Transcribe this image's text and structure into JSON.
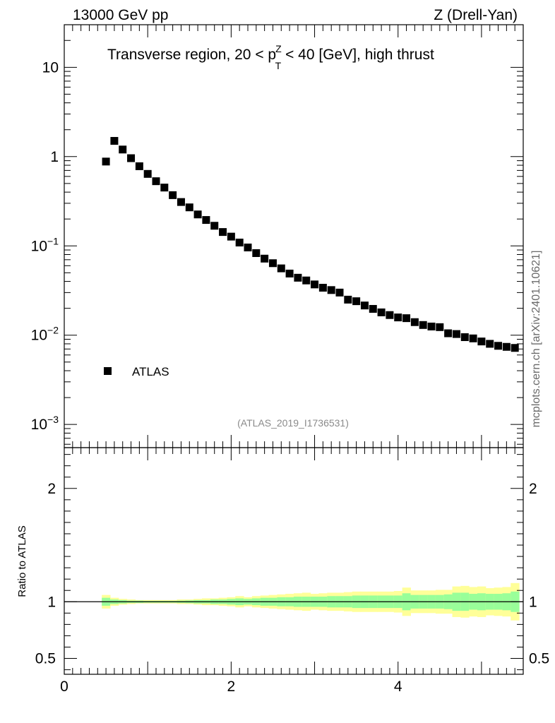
{
  "header": {
    "left": "13000 GeV pp",
    "right": "Z (Drell-Yan)"
  },
  "side_text": "mcplots.cern.ch [arXiv:2401.10621]",
  "reference": "(ATLAS_2019_I1736531)",
  "chart_data": [
    {
      "type": "scatter",
      "panel": "main",
      "title_parts": {
        "prefix": "Transverse region, 20 < p",
        "sup": "Z",
        "sub": "T",
        "suffix": " < 40 [GeV], high thrust"
      },
      "y_scale": "log",
      "ylim": [
        0.00055,
        30
      ],
      "xlim": [
        0,
        5.5
      ],
      "y_ticks": [
        {
          "value": 0.001,
          "base": "10",
          "exp": "−3"
        },
        {
          "value": 0.01,
          "base": "10",
          "exp": "−2"
        },
        {
          "value": 0.1,
          "base": "10",
          "exp": "−1"
        },
        {
          "value": 1,
          "label": "1"
        },
        {
          "value": 10,
          "label": "10"
        }
      ],
      "legend": {
        "position": "bottom-left",
        "label": "ATLAS"
      },
      "series": [
        {
          "name": "ATLAS",
          "color": "#000000",
          "marker": "square",
          "x": [
            0.5,
            0.6,
            0.7,
            0.8,
            0.9,
            1.0,
            1.1,
            1.2,
            1.3,
            1.4,
            1.5,
            1.6,
            1.7,
            1.8,
            1.9,
            2.0,
            2.1,
            2.2,
            2.3,
            2.4,
            2.5,
            2.6,
            2.7,
            2.8,
            2.9,
            3.0,
            3.1,
            3.2,
            3.3,
            3.4,
            3.5,
            3.6,
            3.7,
            3.8,
            3.9,
            4.0,
            4.1,
            4.2,
            4.3,
            4.4,
            4.5,
            4.6,
            4.7,
            4.8,
            4.9,
            5.0,
            5.1,
            5.2,
            5.3,
            5.4
          ],
          "y": [
            0.88,
            1.5,
            1.2,
            0.96,
            0.78,
            0.64,
            0.53,
            0.45,
            0.37,
            0.31,
            0.27,
            0.225,
            0.195,
            0.168,
            0.143,
            0.127,
            0.109,
            0.096,
            0.083,
            0.072,
            0.064,
            0.056,
            0.049,
            0.044,
            0.041,
            0.037,
            0.034,
            0.032,
            0.03,
            0.025,
            0.024,
            0.0215,
            0.0197,
            0.018,
            0.0168,
            0.0158,
            0.0155,
            0.014,
            0.013,
            0.0125,
            0.0123,
            0.0105,
            0.0103,
            0.0095,
            0.0092,
            0.0085,
            0.008,
            0.0076,
            0.0074,
            0.0072
          ]
        }
      ]
    },
    {
      "type": "area",
      "panel": "ratio",
      "ylabel": "Ratio to ATLAS",
      "ylim": [
        0.36,
        2.36
      ],
      "xlim": [
        0,
        5.5
      ],
      "y_ticks": [
        0.5,
        1,
        2
      ],
      "x_ticks": [
        0,
        2,
        4
      ],
      "reference_line": 1,
      "bands": {
        "colors": {
          "outer": "#ffff99",
          "inner": "#99ff99"
        },
        "x_edges": [
          0.45,
          0.55,
          0.65,
          0.75,
          0.85,
          0.95,
          1.05,
          1.15,
          1.25,
          1.35,
          1.45,
          1.55,
          1.65,
          1.75,
          1.85,
          1.95,
          2.05,
          2.15,
          2.25,
          2.35,
          2.45,
          2.55,
          2.65,
          2.75,
          2.85,
          2.95,
          3.05,
          3.15,
          3.25,
          3.35,
          3.45,
          3.55,
          3.65,
          3.75,
          3.85,
          3.95,
          4.05,
          4.15,
          4.25,
          4.35,
          4.45,
          4.55,
          4.65,
          4.75,
          4.85,
          4.95,
          5.05,
          5.15,
          5.25,
          5.35,
          5.45
        ],
        "outer_half_width": [
          0.06,
          0.035,
          0.025,
          0.02,
          0.015,
          0.015,
          0.015,
          0.015,
          0.015,
          0.02,
          0.02,
          0.025,
          0.03,
          0.03,
          0.035,
          0.04,
          0.05,
          0.04,
          0.05,
          0.055,
          0.06,
          0.065,
          0.07,
          0.075,
          0.08,
          0.07,
          0.075,
          0.08,
          0.08,
          0.085,
          0.09,
          0.09,
          0.09,
          0.09,
          0.09,
          0.095,
          0.125,
          0.1,
          0.1,
          0.1,
          0.105,
          0.105,
          0.135,
          0.14,
          0.13,
          0.135,
          0.12,
          0.125,
          0.13,
          0.165,
          0.22
        ],
        "inner_half_width": [
          0.035,
          0.02,
          0.015,
          0.01,
          0.01,
          0.008,
          0.008,
          0.008,
          0.008,
          0.01,
          0.012,
          0.015,
          0.015,
          0.02,
          0.02,
          0.025,
          0.03,
          0.025,
          0.03,
          0.035,
          0.035,
          0.04,
          0.04,
          0.045,
          0.045,
          0.045,
          0.045,
          0.05,
          0.05,
          0.05,
          0.055,
          0.055,
          0.055,
          0.055,
          0.055,
          0.055,
          0.075,
          0.06,
          0.06,
          0.06,
          0.06,
          0.065,
          0.08,
          0.08,
          0.07,
          0.075,
          0.07,
          0.07,
          0.075,
          0.09,
          0.12
        ]
      }
    }
  ]
}
